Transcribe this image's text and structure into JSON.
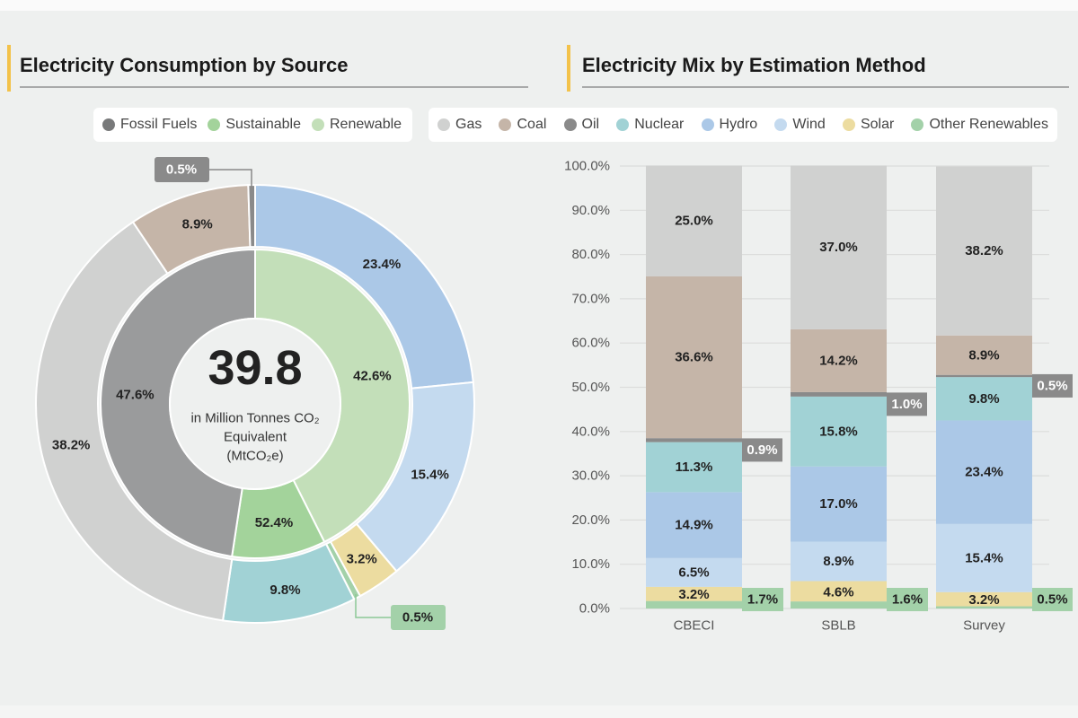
{
  "left": {
    "title": "Electricity Consumption by Source",
    "legend": [
      {
        "label": "Fossil Fuels",
        "color": "#78797a"
      },
      {
        "label": "Sustainable",
        "color": "#a3d39b"
      },
      {
        "label": "Renewable",
        "color": "#c3dfb9"
      }
    ]
  },
  "right": {
    "title": "Electricity Mix by Estimation Method",
    "legend": [
      {
        "label": "Gas",
        "color": "#d0d1d0"
      },
      {
        "label": "Coal",
        "color": "#c5b5a8"
      },
      {
        "label": "Oil",
        "color": "#8a8a8a"
      },
      {
        "label": "Nuclear",
        "color": "#a1d2d5"
      },
      {
        "label": "Hydro",
        "color": "#abc8e7"
      },
      {
        "label": "Wind",
        "color": "#c4daef"
      },
      {
        "label": "Solar",
        "color": "#ecdca0"
      },
      {
        "label": "Other Renewables",
        "color": "#a3d1a9"
      }
    ]
  },
  "chart_data": [
    {
      "type": "pie",
      "variant": "nested-donut",
      "center": {
        "value": "39.8",
        "unit_line1": "in Million Tonnes CO₂",
        "unit_line2": "Equivalent",
        "unit_line3": "(MtCO₂e)"
      },
      "outer_ring": [
        {
          "category": "Hydro",
          "value": 23.4,
          "label": "23.4%",
          "color": "#abc8e7"
        },
        {
          "category": "Wind",
          "value": 15.4,
          "label": "15.4%",
          "color": "#c4daef"
        },
        {
          "category": "Solar",
          "value": 3.2,
          "label": "3.2%",
          "color": "#ecdca0"
        },
        {
          "category": "Other Renewables",
          "value": 0.5,
          "label": "0.5%",
          "color": "#a3d1a9",
          "callout": true
        },
        {
          "category": "Nuclear",
          "value": 9.8,
          "label": "9.8%",
          "color": "#a1d2d5"
        },
        {
          "category": "Gas",
          "value": 38.2,
          "label": "38.2%",
          "color": "#d0d1d0"
        },
        {
          "category": "Coal",
          "value": 8.9,
          "label": "8.9%",
          "color": "#c5b5a8"
        },
        {
          "category": "Oil",
          "value": 0.5,
          "label": "0.5%",
          "color": "#8a8a8a",
          "callout": true
        }
      ],
      "inner_ring": [
        {
          "category": "Renewable",
          "value": 42.6,
          "label": "42.6%",
          "color": "#c3dfb9"
        },
        {
          "category": "Sustainable",
          "value": 9.8,
          "label": "52.4%",
          "color": "#a3d39b"
        },
        {
          "category": "Fossil Fuels",
          "value": 47.6,
          "label": "47.6%",
          "color": "#9a9b9c"
        }
      ]
    },
    {
      "type": "bar",
      "variant": "stacked-100",
      "categories": [
        "CBECI",
        "SBLB",
        "Survey"
      ],
      "ylim": [
        0,
        100
      ],
      "yticks": [
        "0.0%",
        "10.0%",
        "20.0%",
        "30.0%",
        "40.0%",
        "50.0%",
        "60.0%",
        "70.0%",
        "80.0%",
        "90.0%",
        "100.0%"
      ],
      "grid": true,
      "legend_position": "top",
      "series": [
        {
          "name": "Other Renewables",
          "color": "#a3d1a9",
          "values": [
            1.7,
            1.6,
            0.5
          ],
          "labels": [
            "1.7%",
            "1.6%",
            "0.5%"
          ],
          "callout": true
        },
        {
          "name": "Solar",
          "color": "#ecdca0",
          "values": [
            3.2,
            4.6,
            3.2
          ],
          "labels": [
            "3.2%",
            "4.6%",
            "3.2%"
          ]
        },
        {
          "name": "Wind",
          "color": "#c4daef",
          "values": [
            6.5,
            8.9,
            15.4
          ],
          "labels": [
            "6.5%",
            "8.9%",
            "15.4%"
          ]
        },
        {
          "name": "Hydro",
          "color": "#abc8e7",
          "values": [
            14.9,
            17.0,
            23.4
          ],
          "labels": [
            "14.9%",
            "17.0%",
            "23.4%"
          ]
        },
        {
          "name": "Nuclear",
          "color": "#a1d2d5",
          "values": [
            11.3,
            15.8,
            9.8
          ],
          "labels": [
            "11.3%",
            "15.8%",
            "9.8%"
          ]
        },
        {
          "name": "Oil",
          "color": "#8a8a8a",
          "values": [
            0.9,
            1.0,
            0.5
          ],
          "labels": [
            "0.9%",
            "1.0%",
            "0.5%"
          ],
          "callout": true
        },
        {
          "name": "Coal",
          "color": "#c5b5a8",
          "values": [
            36.6,
            14.2,
            8.9
          ],
          "labels": [
            "36.6%",
            "14.2%",
            "8.9%"
          ]
        },
        {
          "name": "Gas",
          "color": "#d0d1d0",
          "values": [
            25.0,
            37.0,
            38.2
          ],
          "labels": [
            "25.0%",
            "37.0%",
            "38.2%"
          ]
        }
      ]
    }
  ]
}
